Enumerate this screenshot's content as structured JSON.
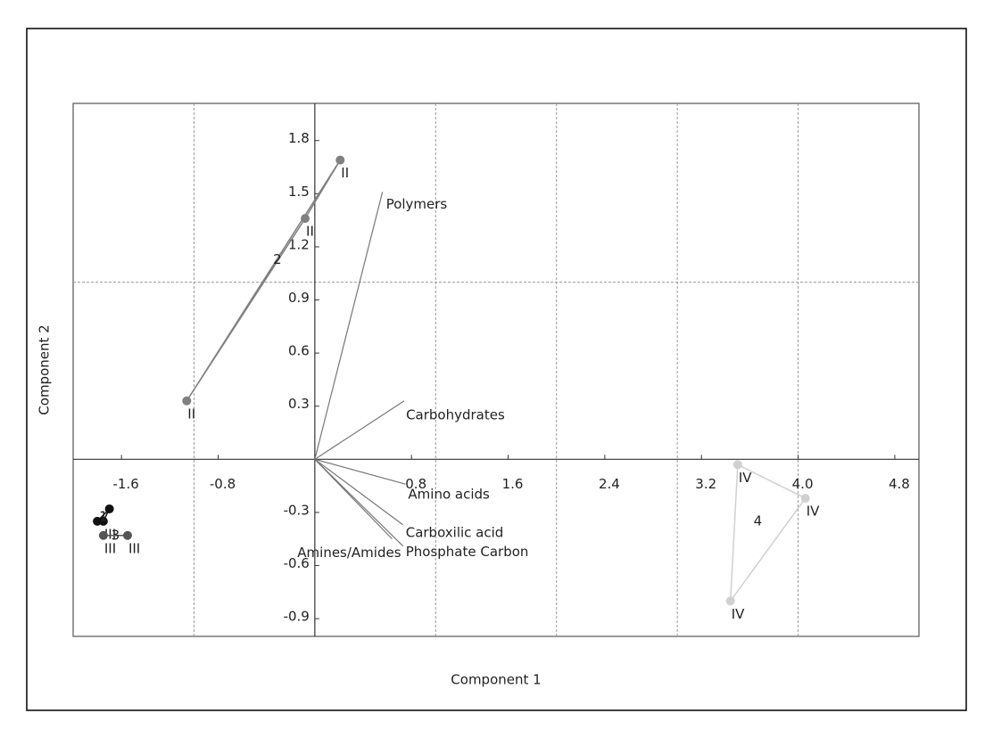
{
  "chart_data": {
    "type": "biplot",
    "xlabel": "Component 1",
    "ylabel": "Component 2",
    "xlim": [
      -2,
      5
    ],
    "ylim": [
      -1,
      2.01
    ],
    "xticks": [
      -1.6,
      -0.8,
      0.8,
      1.6,
      2.4,
      3.2,
      {
        "value": 4,
        "label": "4.0"
      },
      4.8
    ],
    "yticks": [
      -0.9,
      -0.6,
      -0.3,
      0.3,
      0.6,
      0.9,
      1.2,
      1.5,
      1.8
    ],
    "grid": {
      "x": [
        -1,
        1,
        2,
        3,
        4
      ],
      "y": [
        1
      ]
    },
    "groups": [
      {
        "name": "1",
        "color": "#111111",
        "x": [
          -1.7,
          -1.8,
          -1.75
        ],
        "y": [
          -0.28,
          -0.35,
          -0.35
        ],
        "labels": [
          null,
          null,
          "III"
        ]
      },
      {
        "name": "3",
        "color": "#555555",
        "x": [
          -1.75,
          -1.55
        ],
        "y": [
          -0.43,
          -0.43
        ],
        "labels": [
          "III",
          "III"
        ]
      },
      {
        "name": "2",
        "color": "#808080",
        "x": [
          0.21,
          -0.08,
          -1.06
        ],
        "y": [
          1.69,
          1.36,
          0.33
        ],
        "labels": [
          "II",
          "II",
          "II"
        ]
      },
      {
        "name": "4",
        "color": "#d0d0d0",
        "x": [
          3.5,
          4.06,
          3.44
        ],
        "y": [
          -0.03,
          -0.22,
          -0.8
        ],
        "labels": [
          "IV",
          "IV",
          "IV"
        ]
      }
    ],
    "vectors": [
      {
        "name": "Polymers",
        "x": 0.56,
        "y": 1.51
      },
      {
        "name": "Carbohydrates",
        "x": 0.74,
        "y": 0.33
      },
      {
        "name": "Amino acids",
        "x": 0.75,
        "y": -0.14
      },
      {
        "name": "Carboxilic acid",
        "x": 0.73,
        "y": -0.37
      },
      {
        "name": "Phosphate Carbon",
        "x": 0.73,
        "y": -0.49
      },
      {
        "name": "Amines/Amides",
        "x": 0.64,
        "y": -0.45
      }
    ]
  }
}
